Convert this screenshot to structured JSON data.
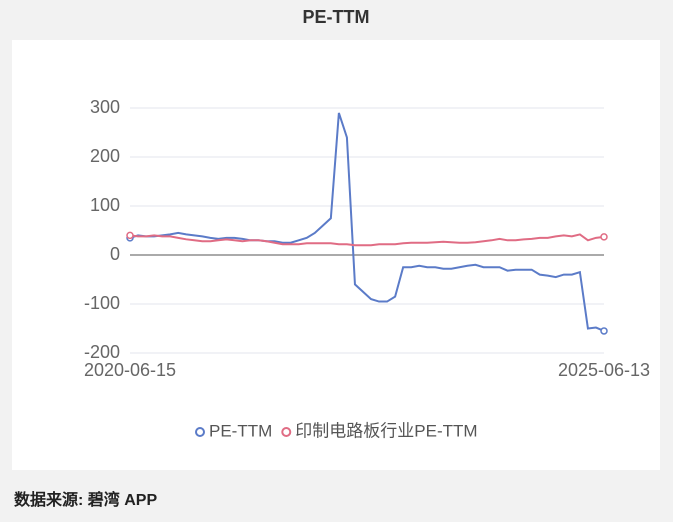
{
  "chart_data": {
    "type": "line",
    "title": "PE-TTM",
    "categories": [
      "2020-06-15",
      null,
      null,
      null,
      null,
      null,
      null,
      null,
      null,
      null,
      null,
      null,
      null,
      null,
      null,
      null,
      null,
      null,
      null,
      null,
      null,
      null,
      null,
      null,
      null,
      null,
      null,
      null,
      null,
      null,
      null,
      null,
      null,
      null,
      null,
      null,
      null,
      null,
      null,
      null,
      null,
      null,
      null,
      null,
      null,
      null,
      null,
      null,
      null,
      null,
      null,
      null,
      null,
      null,
      null,
      null,
      null,
      null,
      null,
      "2025-06-13"
    ],
    "series": [
      {
        "name": "PE-TTM",
        "color": "#5b7bc8",
        "values": [
          35,
          40,
          38,
          38,
          40,
          42,
          45,
          42,
          40,
          38,
          35,
          33,
          35,
          35,
          33,
          30,
          30,
          28,
          28,
          25,
          25,
          30,
          35,
          45,
          60,
          75,
          290,
          240,
          -60,
          -75,
          -90,
          -95,
          -95,
          -85,
          -25,
          -25,
          -22,
          -25,
          -25,
          -28,
          -28,
          -25,
          -22,
          -20,
          -25,
          -25,
          -25,
          -32,
          -30,
          -30,
          -30,
          -40,
          -42,
          -45,
          -40,
          -40,
          -35,
          -150,
          -148,
          -155
        ]
      },
      {
        "name": "印制电路板行业PE-TTM",
        "color": "#e06c84",
        "values": [
          40,
          38,
          38,
          40,
          38,
          38,
          35,
          32,
          30,
          28,
          28,
          30,
          32,
          30,
          28,
          30,
          30,
          28,
          25,
          22,
          22,
          22,
          24,
          24,
          24,
          24,
          22,
          22,
          20,
          20,
          20,
          22,
          22,
          22,
          24,
          25,
          25,
          25,
          26,
          27,
          26,
          25,
          25,
          26,
          28,
          30,
          33,
          30,
          30,
          32,
          33,
          35,
          35,
          38,
          40,
          38,
          42,
          30,
          35,
          37
        ]
      }
    ],
    "ylim": [
      -200,
      300
    ],
    "yticks": [
      -200,
      -100,
      0,
      100,
      200,
      300
    ],
    "grid": true,
    "source": "数据来源: 碧湾 APP"
  }
}
